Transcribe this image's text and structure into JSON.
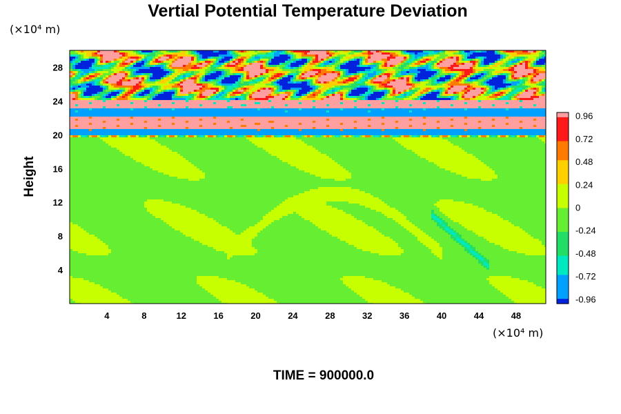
{
  "chart_data": {
    "type": "heatmap",
    "title": "Vertial Potential Temperature Deviation",
    "ylabel": "Height",
    "x_unit_label": "(×10⁴ m)",
    "y_unit_label": "(×10⁴ m)",
    "footer": "TIME = 900000.0",
    "xlim": [
      0,
      51.2
    ],
    "ylim": [
      0,
      30
    ],
    "x_ticks": [
      "4",
      "8",
      "12",
      "16",
      "20",
      "24",
      "28",
      "32",
      "36",
      "40",
      "44",
      "48"
    ],
    "y_ticks": [
      "4",
      "8",
      "12",
      "16",
      "20",
      "24",
      "28"
    ],
    "grid": false,
    "colorbar": {
      "labels": [
        "0.96",
        "0.72",
        "0.48",
        "0.24",
        "0",
        "-0.24",
        "-0.48",
        "-0.72",
        "-0.96"
      ],
      "levels": [
        1.0,
        0.96,
        0.72,
        0.48,
        0.24,
        0,
        -0.24,
        -0.48,
        -0.72,
        -0.96,
        -1.0
      ],
      "colors": [
        "#ff9fa0",
        "#ff1a1a",
        "#ff7a00",
        "#ffd000",
        "#c8ff00",
        "#66ee33",
        "#22dd66",
        "#00e8c0",
        "#00a0ff",
        "#0022dd",
        "#8000c0"
      ]
    },
    "layers": [
      {
        "name": "lower troposphere",
        "y_range": [
          0,
          19.8
        ],
        "typical_value": -0.02
      },
      {
        "name": "strong negative band",
        "y_range": [
          20.0,
          20.8
        ],
        "typical_value": -0.96
      },
      {
        "name": "strong positive band",
        "y_range": [
          20.8,
          22.2
        ],
        "typical_value": 0.96
      },
      {
        "name": "strong negative band",
        "y_range": [
          22.2,
          23.2
        ],
        "typical_value": -0.96
      },
      {
        "name": "strong positive band",
        "y_range": [
          23.2,
          24.2
        ],
        "typical_value": 0.96
      },
      {
        "name": "wave field",
        "y_range": [
          24.2,
          30
        ],
        "typical_value": "alternating ±0.96"
      }
    ],
    "features": [
      {
        "name": "descending negative streak",
        "x_range": [
          39,
          45
        ],
        "y_range": [
          4.5,
          10.5
        ],
        "typical_value": -0.6
      },
      {
        "name": "warm filament",
        "x_range": [
          17,
          40
        ],
        "y_range": [
          6,
          13
        ],
        "typical_value": 0.2
      }
    ]
  }
}
